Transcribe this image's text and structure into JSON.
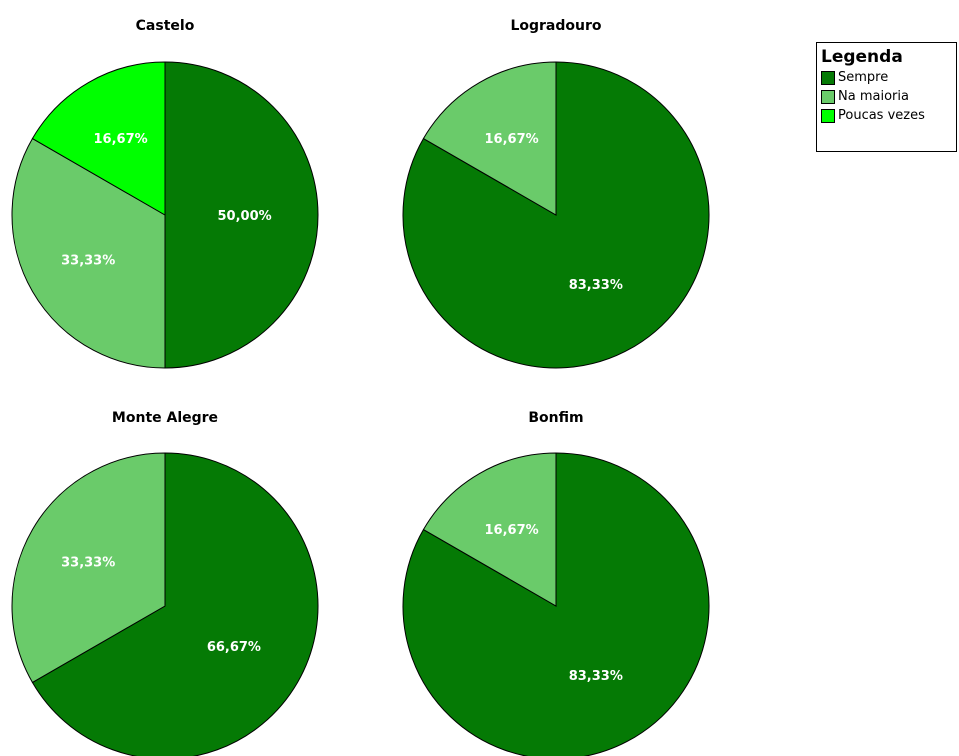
{
  "chart_data": [
    {
      "type": "pie",
      "title": "Castelo",
      "slices": [
        {
          "category": "Sempre",
          "value": 50.0,
          "label": "50,00%"
        },
        {
          "category": "Na maioria",
          "value": 33.33,
          "label": "33,33%"
        },
        {
          "category": "Poucas vezes",
          "value": 16.67,
          "label": "16,67%"
        }
      ]
    },
    {
      "type": "pie",
      "title": "Logradouro",
      "slices": [
        {
          "category": "Sempre",
          "value": 83.33,
          "label": "83,33%"
        },
        {
          "category": "Na maioria",
          "value": 16.67,
          "label": "16,67%"
        }
      ]
    },
    {
      "type": "pie",
      "title": "Monte Alegre",
      "slices": [
        {
          "category": "Sempre",
          "value": 66.67,
          "label": "66,67%"
        },
        {
          "category": "Na maioria",
          "value": 33.33,
          "label": "33,33%"
        }
      ]
    },
    {
      "type": "pie",
      "title": "Bonfim",
      "slices": [
        {
          "category": "Sempre",
          "value": 83.33,
          "label": "83,33%"
        },
        {
          "category": "Na maioria",
          "value": 16.67,
          "label": "16,67%"
        }
      ]
    }
  ],
  "legend": {
    "title": "Legenda",
    "placement": "top-right",
    "items": [
      {
        "label": "Sempre",
        "color": "#057a05"
      },
      {
        "label": "Na maioria",
        "color": "#6acb6a"
      },
      {
        "label": "Poucas vezes",
        "color": "#00ff00"
      }
    ]
  }
}
